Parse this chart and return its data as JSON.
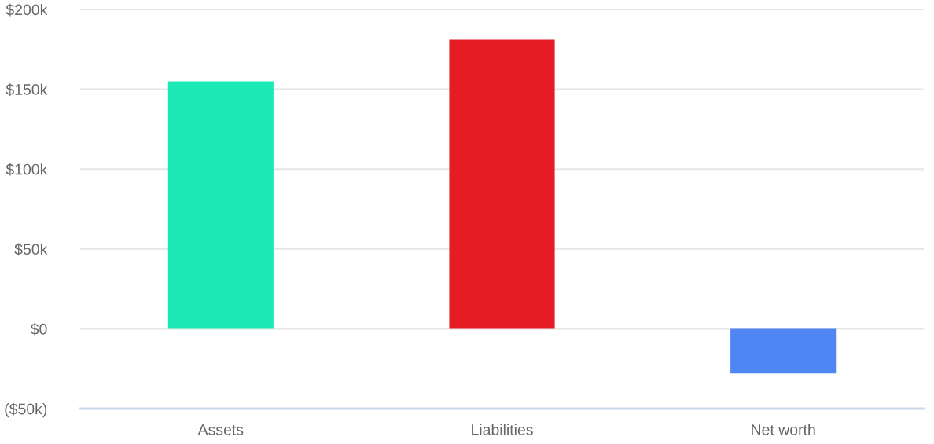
{
  "chart_data": {
    "type": "bar",
    "categories": [
      "Assets",
      "Liabilities",
      "Net worth"
    ],
    "values": [
      155000,
      181000,
      -28000
    ],
    "colors": [
      "#1de9b6",
      "#e51c23",
      "#5086f3"
    ],
    "ylim": [
      -50000,
      200000
    ],
    "yticks": [
      {
        "value": -50000,
        "label": "($50k)"
      },
      {
        "value": 0,
        "label": "$0"
      },
      {
        "value": 50000,
        "label": "$50k"
      },
      {
        "value": 100000,
        "label": "$100k"
      },
      {
        "value": 150000,
        "label": "$150k"
      },
      {
        "value": 200000,
        "label": "$200k"
      }
    ],
    "grid": "y",
    "legend": false
  }
}
